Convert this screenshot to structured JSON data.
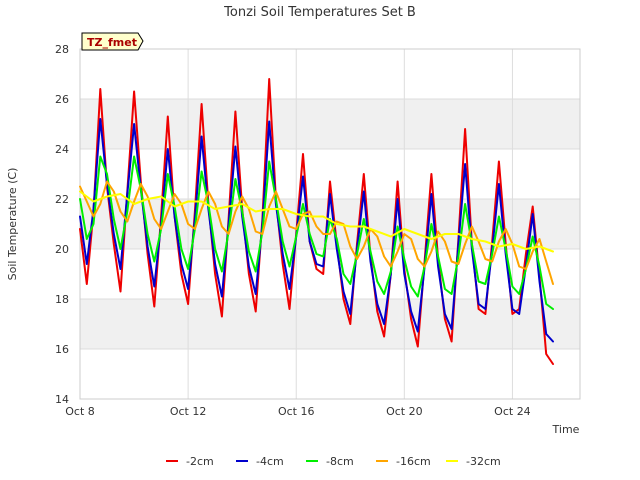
{
  "chart_data": {
    "type": "line",
    "title": "Tonzi Soil Temperatures Set B",
    "xlabel": "Time",
    "ylabel": "Soil Temperature (C)",
    "ylim": [
      14,
      28
    ],
    "xlim": [
      0,
      18.5
    ],
    "x_unit": "days since Oct 8",
    "yticks": [
      14,
      16,
      18,
      20,
      22,
      24,
      26,
      28
    ],
    "xticks": [
      {
        "x": 0,
        "label": "Oct 8"
      },
      {
        "x": 4,
        "label": "Oct 12"
      },
      {
        "x": 8,
        "label": "Oct 16"
      },
      {
        "x": 12,
        "label": "Oct 20"
      },
      {
        "x": 16,
        "label": "Oct 24"
      }
    ],
    "grid": true,
    "background_bands": "alternating light gray",
    "legend_position": "bottom",
    "annotation": "TZ_fmet",
    "series": [
      {
        "name": "-2cm",
        "color": "#ee0000",
        "x": [
          0.0,
          0.25,
          0.5,
          0.75,
          1.0,
          1.25,
          1.5,
          1.75,
          2.0,
          2.25,
          2.5,
          2.75,
          3.0,
          3.25,
          3.5,
          3.75,
          4.0,
          4.25,
          4.5,
          4.75,
          5.0,
          5.25,
          5.5,
          5.75,
          6.0,
          6.25,
          6.5,
          6.75,
          7.0,
          7.25,
          7.5,
          7.75,
          8.0,
          8.25,
          8.5,
          8.75,
          9.0,
          9.25,
          9.5,
          9.75,
          10.0,
          10.25,
          10.5,
          10.75,
          11.0,
          11.25,
          11.5,
          11.75,
          12.0,
          12.25,
          12.5,
          12.75,
          13.0,
          13.25,
          13.5,
          13.75,
          14.0,
          14.25,
          14.5,
          14.75,
          15.0,
          15.25,
          15.5,
          15.75,
          16.0,
          16.25,
          16.5,
          16.75,
          17.0,
          17.25,
          17.5
        ],
        "values": [
          20.8,
          18.6,
          21.5,
          26.4,
          22.5,
          20.2,
          18.3,
          22.3,
          26.3,
          22.7,
          19.8,
          17.7,
          21.3,
          25.3,
          21.3,
          19.0,
          17.8,
          21.5,
          25.8,
          21.8,
          19.0,
          17.3,
          21.2,
          25.5,
          21.6,
          19.0,
          17.5,
          21.2,
          26.8,
          22.0,
          19.4,
          17.6,
          20.6,
          23.8,
          20.3,
          19.2,
          19.0,
          22.7,
          20.2,
          18.0,
          17.0,
          20.2,
          23.0,
          19.7,
          17.5,
          16.5,
          19.0,
          22.7,
          19.2,
          17.2,
          16.1,
          19.5,
          23.0,
          19.6,
          17.2,
          16.3,
          20.4,
          24.8,
          20.2,
          17.6,
          17.4,
          20.3,
          23.5,
          20.2,
          17.4,
          17.6,
          19.8,
          21.7,
          18.9,
          15.8,
          15.4
        ]
      },
      {
        "name": "-4cm",
        "color": "#0000cc",
        "x": [
          0.0,
          0.25,
          0.5,
          0.75,
          1.0,
          1.25,
          1.5,
          1.75,
          2.0,
          2.25,
          2.5,
          2.75,
          3.0,
          3.25,
          3.5,
          3.75,
          4.0,
          4.25,
          4.5,
          4.75,
          5.0,
          5.25,
          5.5,
          5.75,
          6.0,
          6.25,
          6.5,
          6.75,
          7.0,
          7.25,
          7.5,
          7.75,
          8.0,
          8.25,
          8.5,
          8.75,
          9.0,
          9.25,
          9.5,
          9.75,
          10.0,
          10.25,
          10.5,
          10.75,
          11.0,
          11.25,
          11.5,
          11.75,
          12.0,
          12.25,
          12.5,
          12.75,
          13.0,
          13.25,
          13.5,
          13.75,
          14.0,
          14.25,
          14.5,
          14.75,
          15.0,
          15.25,
          15.5,
          15.75,
          16.0,
          16.25,
          16.5,
          16.75,
          17.0,
          17.25,
          17.5
        ],
        "values": [
          21.3,
          19.4,
          21.6,
          25.2,
          22.6,
          20.6,
          19.2,
          22.2,
          25.0,
          22.4,
          20.1,
          18.5,
          21.0,
          24.0,
          21.3,
          19.4,
          18.4,
          21.2,
          24.5,
          21.6,
          19.4,
          18.1,
          21.0,
          24.1,
          21.3,
          19.3,
          18.2,
          21.0,
          25.1,
          21.8,
          19.8,
          18.4,
          20.5,
          22.9,
          20.3,
          19.4,
          19.3,
          22.2,
          20.0,
          18.3,
          17.4,
          20.0,
          22.3,
          19.5,
          17.8,
          17.0,
          19.0,
          22.0,
          19.0,
          17.5,
          16.7,
          19.3,
          22.2,
          19.3,
          17.4,
          16.8,
          20.2,
          23.4,
          20.0,
          17.8,
          17.6,
          20.0,
          22.6,
          19.8,
          17.6,
          17.4,
          19.3,
          21.4,
          18.7,
          16.6,
          16.3
        ]
      },
      {
        "name": "-8cm",
        "color": "#00ee00",
        "x": [
          0.0,
          0.25,
          0.5,
          0.75,
          1.0,
          1.25,
          1.5,
          1.75,
          2.0,
          2.25,
          2.5,
          2.75,
          3.0,
          3.25,
          3.5,
          3.75,
          4.0,
          4.25,
          4.5,
          4.75,
          5.0,
          5.25,
          5.5,
          5.75,
          6.0,
          6.25,
          6.5,
          6.75,
          7.0,
          7.25,
          7.5,
          7.75,
          8.0,
          8.25,
          8.5,
          8.75,
          9.0,
          9.25,
          9.5,
          9.75,
          10.0,
          10.25,
          10.5,
          10.75,
          11.0,
          11.25,
          11.5,
          11.75,
          12.0,
          12.25,
          12.5,
          12.75,
          13.0,
          13.25,
          13.5,
          13.75,
          14.0,
          14.25,
          14.5,
          14.75,
          15.0,
          15.25,
          15.5,
          15.75,
          16.0,
          16.25,
          16.5,
          16.75,
          17.0,
          17.25,
          17.5
        ],
        "values": [
          22.0,
          20.4,
          21.0,
          23.7,
          23.0,
          21.2,
          20.0,
          21.5,
          23.7,
          22.4,
          20.6,
          19.5,
          20.8,
          23.0,
          21.7,
          20.0,
          19.2,
          20.8,
          23.1,
          21.8,
          20.0,
          19.1,
          20.7,
          22.8,
          21.5,
          19.9,
          19.1,
          20.7,
          23.5,
          22.0,
          20.3,
          19.3,
          20.5,
          21.8,
          20.6,
          19.8,
          19.7,
          21.2,
          20.4,
          19.0,
          18.6,
          19.8,
          21.2,
          19.9,
          18.7,
          18.2,
          19.1,
          20.9,
          19.6,
          18.5,
          18.1,
          19.3,
          21.0,
          19.7,
          18.4,
          18.2,
          19.7,
          21.8,
          20.2,
          18.7,
          18.6,
          19.8,
          21.3,
          20.0,
          18.5,
          18.2,
          19.2,
          20.5,
          19.3,
          17.8,
          17.6
        ]
      },
      {
        "name": "-16cm",
        "color": "#ffa500",
        "x": [
          0.0,
          0.25,
          0.5,
          0.75,
          1.0,
          1.25,
          1.5,
          1.75,
          2.0,
          2.25,
          2.5,
          2.75,
          3.0,
          3.25,
          3.5,
          3.75,
          4.0,
          4.25,
          4.5,
          4.75,
          5.0,
          5.25,
          5.5,
          5.75,
          6.0,
          6.25,
          6.5,
          6.75,
          7.0,
          7.25,
          7.5,
          7.75,
          8.0,
          8.25,
          8.5,
          8.75,
          9.0,
          9.25,
          9.5,
          9.75,
          10.0,
          10.25,
          10.5,
          10.75,
          11.0,
          11.25,
          11.5,
          11.75,
          12.0,
          12.25,
          12.5,
          12.75,
          13.0,
          13.25,
          13.5,
          13.75,
          14.0,
          14.25,
          14.5,
          14.75,
          15.0,
          15.25,
          15.5,
          15.75,
          16.0,
          16.25,
          16.5,
          16.75,
          17.0,
          17.25,
          17.5
        ],
        "values": [
          22.5,
          21.9,
          21.3,
          21.8,
          22.7,
          22.3,
          21.5,
          21.1,
          21.9,
          22.6,
          22.1,
          21.2,
          20.8,
          21.5,
          22.2,
          21.8,
          21.0,
          20.8,
          21.6,
          22.3,
          21.8,
          20.9,
          20.6,
          21.5,
          22.1,
          21.6,
          20.7,
          20.6,
          21.7,
          22.3,
          21.6,
          20.9,
          20.8,
          21.4,
          21.5,
          20.9,
          20.6,
          20.6,
          21.1,
          21.0,
          20.1,
          19.6,
          20.1,
          20.8,
          20.5,
          19.7,
          19.3,
          19.9,
          20.6,
          20.4,
          19.6,
          19.3,
          19.9,
          20.7,
          20.3,
          19.5,
          19.4,
          20.2,
          20.9,
          20.3,
          19.6,
          19.5,
          20.3,
          20.8,
          20.2,
          19.3,
          19.2,
          19.9,
          20.4,
          19.5,
          18.6
        ]
      },
      {
        "name": "-32cm",
        "color": "#ffff00",
        "x": [
          0.0,
          0.5,
          1.0,
          1.5,
          2.0,
          2.5,
          3.0,
          3.5,
          4.0,
          4.5,
          5.0,
          5.5,
          6.0,
          6.5,
          7.0,
          7.5,
          8.0,
          8.5,
          9.0,
          9.5,
          10.0,
          10.5,
          11.0,
          11.5,
          12.0,
          12.5,
          13.0,
          13.5,
          14.0,
          14.5,
          15.0,
          15.5,
          16.0,
          16.5,
          17.0,
          17.5
        ],
        "values": [
          22.3,
          21.9,
          22.1,
          22.2,
          21.8,
          22.0,
          22.1,
          21.7,
          21.9,
          21.9,
          21.6,
          21.7,
          21.8,
          21.5,
          21.6,
          21.6,
          21.4,
          21.3,
          21.3,
          21.0,
          20.9,
          20.9,
          20.7,
          20.5,
          20.8,
          20.6,
          20.4,
          20.6,
          20.6,
          20.4,
          20.3,
          20.1,
          20.2,
          20.0,
          20.1,
          19.9
        ]
      }
    ]
  }
}
